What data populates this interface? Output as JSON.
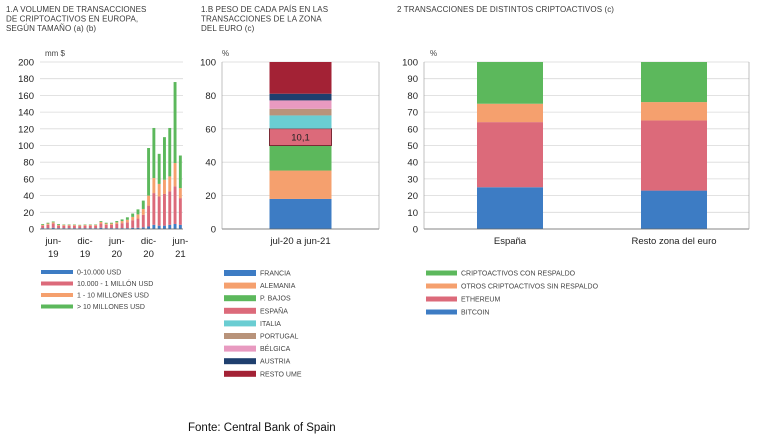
{
  "source": "Fonte: Central Bank of Spain",
  "colors": {
    "blue": "#3d7cc4",
    "orange": "#f5a06e",
    "green": "#5cb85c",
    "red": "#dc6a7a",
    "teal": "#6acdd2",
    "brown": "#b8937a",
    "pink": "#e89ac0",
    "navy": "#1f3f6e",
    "darkred": "#a32235",
    "gridline": "#d9d9d9"
  },
  "chart_data": [
    {
      "type": "bar",
      "stacked": true,
      "title_lines": [
        "1.A  VOLUMEN DE TRANSACCIONES",
        "DE CRIPTOACTIVOS EN EUROPA,",
        "SEGÚN TAMAÑO (a) (b)"
      ],
      "unit": "mm $",
      "ylim": [
        0,
        200
      ],
      "yticks": [
        0,
        20,
        40,
        60,
        80,
        100,
        120,
        140,
        160,
        180,
        200
      ],
      "xtick_labels": [
        {
          "top": "jun-",
          "bottom": "19",
          "index": 2
        },
        {
          "top": "dic-",
          "bottom": "19",
          "index": 8
        },
        {
          "top": "jun-",
          "bottom": "20",
          "index": 14
        },
        {
          "top": "dic-",
          "bottom": "20",
          "index": 20
        },
        {
          "top": "jun-",
          "bottom": "21",
          "index": 26
        }
      ],
      "categories": [
        "abr-19",
        "may-19",
        "jun-19",
        "jul-19",
        "ago-19",
        "sep-19",
        "oct-19",
        "nov-19",
        "dic-19",
        "ene-20",
        "feb-20",
        "mar-20",
        "abr-20",
        "may-20",
        "jun-20",
        "jul-20",
        "ago-20",
        "sep-20",
        "oct-20",
        "nov-20",
        "dic-20",
        "ene-21",
        "feb-21",
        "mar-21",
        "abr-21",
        "may-21",
        "jun-21"
      ],
      "series": [
        {
          "name": "0-10.000 USD",
          "color": "#3d7cc4",
          "values": [
            1,
            1,
            1.5,
            1,
            1,
            1,
            1,
            1,
            1,
            1,
            1,
            1.5,
            1,
            1,
            1,
            1,
            1,
            1.5,
            1.5,
            2,
            3,
            5,
            4,
            4,
            5,
            6,
            5
          ]
        },
        {
          "name": "10.000 - 1 MILLÓN USD",
          "color": "#dc6a7a",
          "values": [
            3,
            4,
            5,
            3,
            3,
            3,
            3,
            2.5,
            3,
            3,
            3,
            5,
            4,
            4,
            5,
            6,
            7,
            9,
            11,
            15,
            25,
            38,
            35,
            38,
            40,
            45,
            32
          ]
        },
        {
          "name": "1 - 10 MILLONES USD",
          "color": "#f5a06e",
          "values": [
            1,
            1.5,
            1.5,
            1,
            1,
            1,
            1,
            1,
            1,
            1,
            1,
            2,
            1.5,
            1.5,
            2,
            2.5,
            3,
            4,
            5,
            7,
            12,
            18,
            15,
            17,
            18,
            28,
            12
          ]
        },
        {
          "name": "> 10 MILLONES USD",
          "color": "#5cb85c",
          "values": [
            1,
            1,
            1,
            1,
            0.5,
            0.5,
            0.5,
            0.5,
            0.5,
            0.5,
            0.5,
            1,
            1,
            1,
            1.5,
            2,
            3,
            4,
            6,
            10,
            57,
            60,
            36,
            51,
            58,
            97,
            39
          ]
        }
      ]
    },
    {
      "type": "bar",
      "stacked": true,
      "title_lines": [
        "1.B  PESO DE CADA PAÍS EN LAS",
        "TRANSACCIONES DE LA ZONA",
        "DEL EURO (c)"
      ],
      "unit": "%",
      "ylim": [
        0,
        100
      ],
      "yticks": [
        0,
        20,
        40,
        60,
        80,
        100
      ],
      "categories": [
        "jul-20 a jun-21"
      ],
      "highlight_label": "10,1",
      "series": [
        {
          "name": "FRANCIA",
          "color": "#3d7cc4",
          "value": 18
        },
        {
          "name": "ALEMANIA",
          "color": "#f5a06e",
          "value": 17
        },
        {
          "name": "P. BAJOS",
          "color": "#5cb85c",
          "value": 15
        },
        {
          "name": "ESPAÑA",
          "color": "#dc6a7a",
          "value": 10.1
        },
        {
          "name": "ITALIA",
          "color": "#6acdd2",
          "value": 7.9
        },
        {
          "name": "PORTUGAL",
          "color": "#b8937a",
          "value": 4
        },
        {
          "name": "BÉLGICA",
          "color": "#e89ac0",
          "value": 5
        },
        {
          "name": "AUSTRIA",
          "color": "#1f3f6e",
          "value": 4
        },
        {
          "name": "RESTO UME",
          "color": "#a32235",
          "value": 19
        }
      ]
    },
    {
      "type": "bar",
      "stacked": true,
      "title_lines": [
        "2  TRANSACCIONES DE DISTINTOS CRIPTOACTIVOS (c)"
      ],
      "unit": "%",
      "ylim": [
        0,
        100
      ],
      "yticks": [
        0,
        10,
        20,
        30,
        40,
        50,
        60,
        70,
        80,
        90,
        100
      ],
      "categories": [
        "España",
        "Resto zona del euro"
      ],
      "series": [
        {
          "name": "BITCOIN",
          "color": "#3d7cc4",
          "values": [
            25,
            23
          ]
        },
        {
          "name": "ETHEREUM",
          "color": "#dc6a7a",
          "values": [
            39,
            42
          ]
        },
        {
          "name": "OTROS CRIPTOACTIVOS SIN RESPALDO",
          "color": "#f5a06e",
          "values": [
            11,
            11
          ]
        },
        {
          "name": "CRIPTOACTIVOS CON RESPALDO",
          "color": "#5cb85c",
          "values": [
            25,
            24
          ]
        }
      ],
      "legend_order": [
        "CRIPTOACTIVOS CON RESPALDO",
        "OTROS CRIPTOACTIVOS SIN RESPALDO",
        "ETHEREUM",
        "BITCOIN"
      ]
    }
  ]
}
